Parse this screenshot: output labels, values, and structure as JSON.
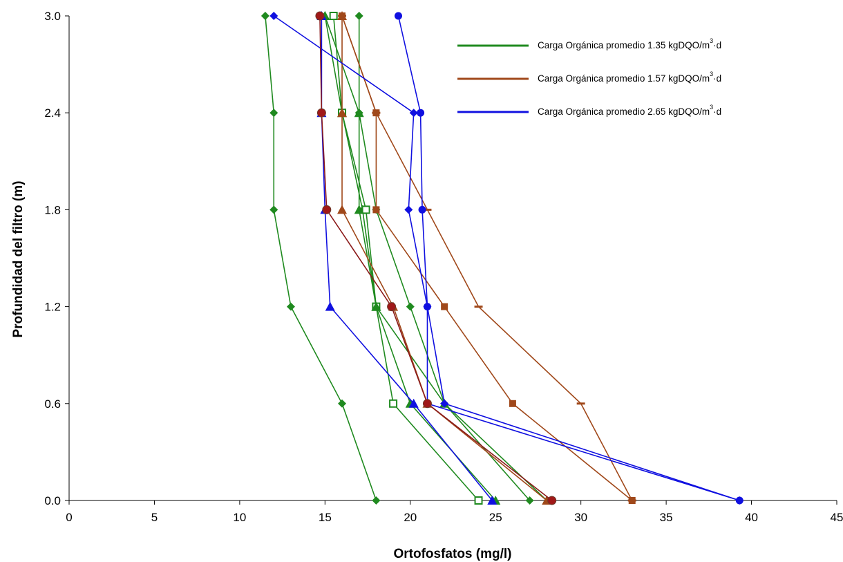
{
  "chart_data": {
    "type": "line",
    "xlabel": "Ortofosfatos (mg/l)",
    "ylabel": "Profundidad del filtro (m)",
    "xlim": [
      0,
      45
    ],
    "ylim": [
      0,
      3
    ],
    "x_ticks": [
      "0",
      "5",
      "10",
      "15",
      "20",
      "25",
      "30",
      "35",
      "40",
      "45"
    ],
    "y_ticks": [
      "0.0",
      "0.6",
      "1.2",
      "1.8",
      "2.4",
      "3.0"
    ],
    "depths": [
      0.0,
      0.6,
      1.2,
      1.8,
      2.4,
      3.0
    ],
    "grid": false,
    "legend_position": "top-right",
    "legend": [
      {
        "base": "Carga Orgánica promedio 1.35 kgDQO/m",
        "sup": "3",
        "tail": "·d",
        "color": "#1f8a1f"
      },
      {
        "base": "Carga Orgánica promedio 1.57 kgDQO/m",
        "sup": "3",
        "tail": "·d",
        "color": "#a0481a"
      },
      {
        "base": "Carga Orgánica promedio 2.65 kgDQO/m",
        "sup": "3",
        "tail": "·d",
        "color": "#1010e0"
      }
    ],
    "groups": [
      {
        "color": "#1f8a1f",
        "series": [
          {
            "marker": "diamond",
            "values": [
              18,
              16,
              13,
              12,
              12,
              11.5
            ]
          },
          {
            "marker": "diamond",
            "values": [
              27,
              22,
              20,
              18,
              17,
              17
            ]
          },
          {
            "marker": "triangle",
            "values": [
              25,
              20,
              18,
              17.2,
              16,
              15
            ]
          },
          {
            "marker": "square-open",
            "values": [
              24,
              19,
              18,
              17.4,
              16,
              15.5
            ]
          },
          {
            "marker": "triangle",
            "values": [
              28,
              22,
              18,
              17,
              17,
              15
            ]
          }
        ]
      },
      {
        "color": "#a0481a",
        "series": [
          {
            "marker": "square",
            "values": [
              33,
              26,
              22,
              18,
              18,
              16
            ]
          },
          {
            "marker": "dash",
            "values": [
              33,
              30,
              24,
              21,
              18,
              16
            ]
          },
          {
            "marker": "triangle",
            "values": [
              28,
              21,
              19,
              16,
              16,
              16
            ]
          }
        ]
      },
      {
        "color": "#1010e0",
        "series": [
          {
            "marker": "diamond",
            "values": [
              39.3,
              22,
              21,
              19.9,
              20.2,
              12
            ]
          },
          {
            "marker": "circle",
            "values": [
              39.3,
              21,
              21,
              20.7,
              20.6,
              19.3
            ]
          },
          {
            "marker": "triangle",
            "values": [
              24.8,
              20.2,
              15.3,
              15,
              14.8,
              14.8
            ]
          }
        ]
      },
      {
        "color": "#8b1a1a",
        "series": [
          {
            "marker": "circle-red",
            "values": [
              28.3,
              21,
              18.9,
              15.1,
              14.8,
              14.7
            ]
          }
        ]
      }
    ]
  }
}
